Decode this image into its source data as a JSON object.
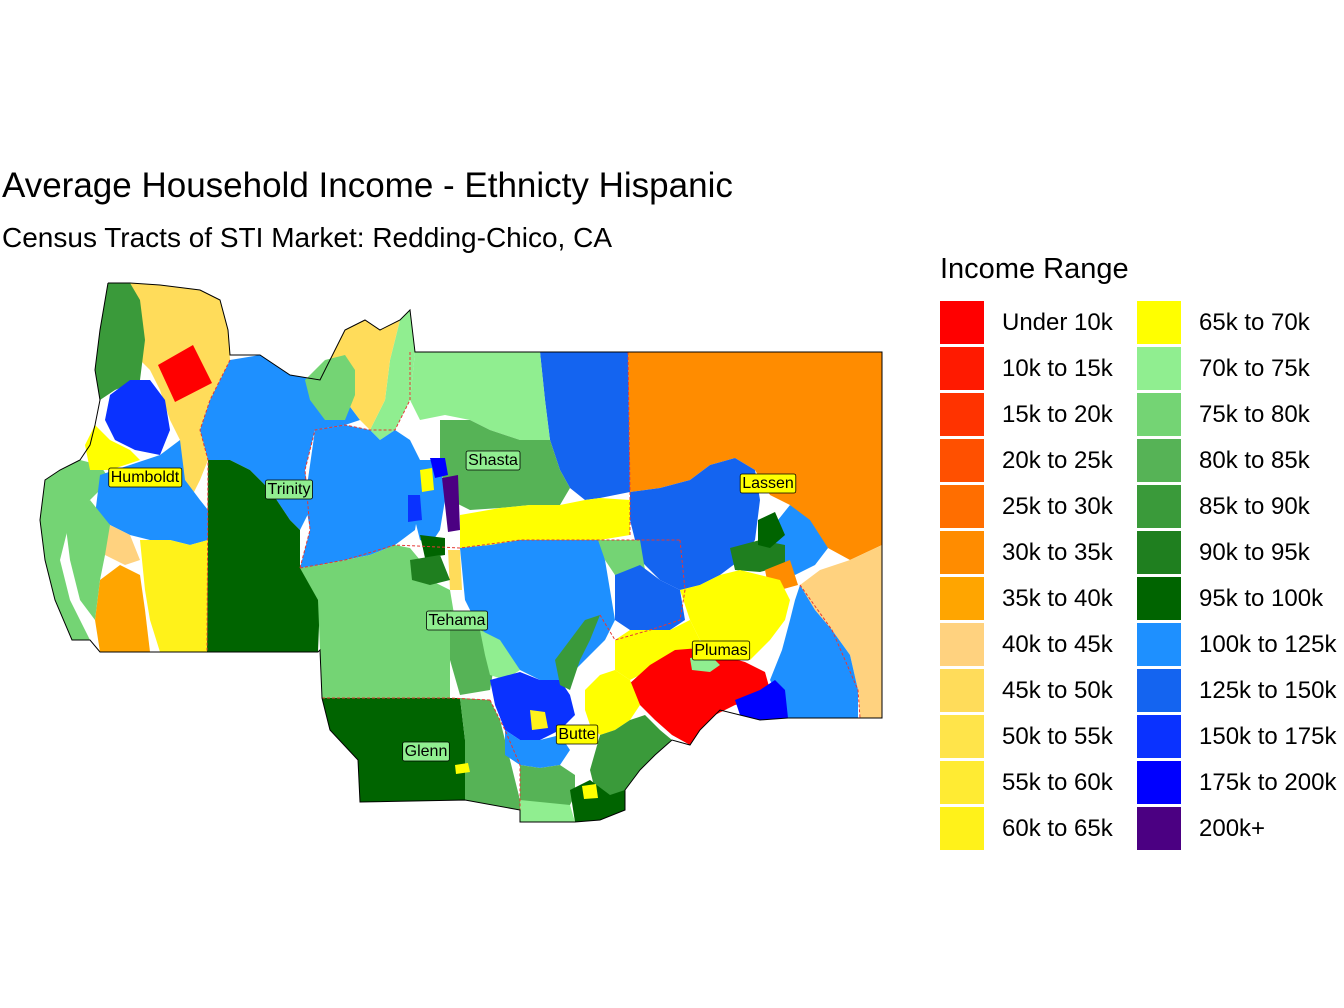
{
  "title": "Average Household Income - Ethnicty Hispanic",
  "subtitle": "Census Tracts of STI Market: Redding-Chico, CA",
  "legend": {
    "title": "Income Range",
    "column_1": [
      {
        "label": "Under 10k",
        "color": "#ff0000"
      },
      {
        "label": "10k to 15k",
        "color": "#ff1a00"
      },
      {
        "label": "15k to 20k",
        "color": "#ff3300"
      },
      {
        "label": "20k to 25k",
        "color": "#ff5000"
      },
      {
        "label": "25k to 30k",
        "color": "#ff6e00"
      },
      {
        "label": "30k to 35k",
        "color": "#ff8c00"
      },
      {
        "label": "35k to 40k",
        "color": "#ffa500"
      },
      {
        "label": "40k to 45k",
        "color": "#ffd27f"
      },
      {
        "label": "45k to 50k",
        "color": "#ffdc5a"
      },
      {
        "label": "50k to 55k",
        "color": "#ffe44a"
      },
      {
        "label": "55k to 60k",
        "color": "#ffeb33"
      },
      {
        "label": "60k to 65k",
        "color": "#fff21a"
      }
    ],
    "column_2": [
      {
        "label": "65k to 70k",
        "color": "#ffff00"
      },
      {
        "label": "70k to 75k",
        "color": "#90ee90"
      },
      {
        "label": "75k to 80k",
        "color": "#74d474"
      },
      {
        "label": "80k to 85k",
        "color": "#56b356"
      },
      {
        "label": "85k to 90k",
        "color": "#3a9a3a"
      },
      {
        "label": "90k to 95k",
        "color": "#1f7f1f"
      },
      {
        "label": "95k to 100k",
        "color": "#006400"
      },
      {
        "label": "100k to 125k",
        "color": "#1e90ff"
      },
      {
        "label": "125k to 150k",
        "color": "#1464f0"
      },
      {
        "label": "150k to 175k",
        "color": "#0a32ff"
      },
      {
        "label": "175k to 200k",
        "color": "#0000ff"
      },
      {
        "label": "200k+",
        "color": "#4b0082"
      }
    ]
  },
  "map": {
    "counties": [
      "Humboldt",
      "Trinity",
      "Shasta",
      "Lassen",
      "Tehama",
      "Plumas",
      "Glenn",
      "Butte"
    ],
    "county_boundary_color": "#e53935",
    "county_label_fill": "#ffff00",
    "county_label_fill_default": "#90ee90"
  }
}
